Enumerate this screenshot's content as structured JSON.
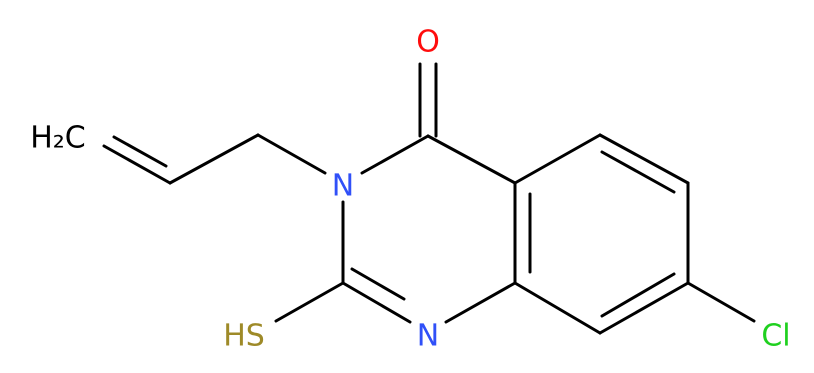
{
  "atoms": [
    {
      "label": "O"
    },
    {
      "label": "N"
    },
    {
      "label": "N"
    },
    {
      "label": "HS"
    },
    {
      "label": "Cl"
    },
    {
      "label": "H₂C"
    }
  ]
}
